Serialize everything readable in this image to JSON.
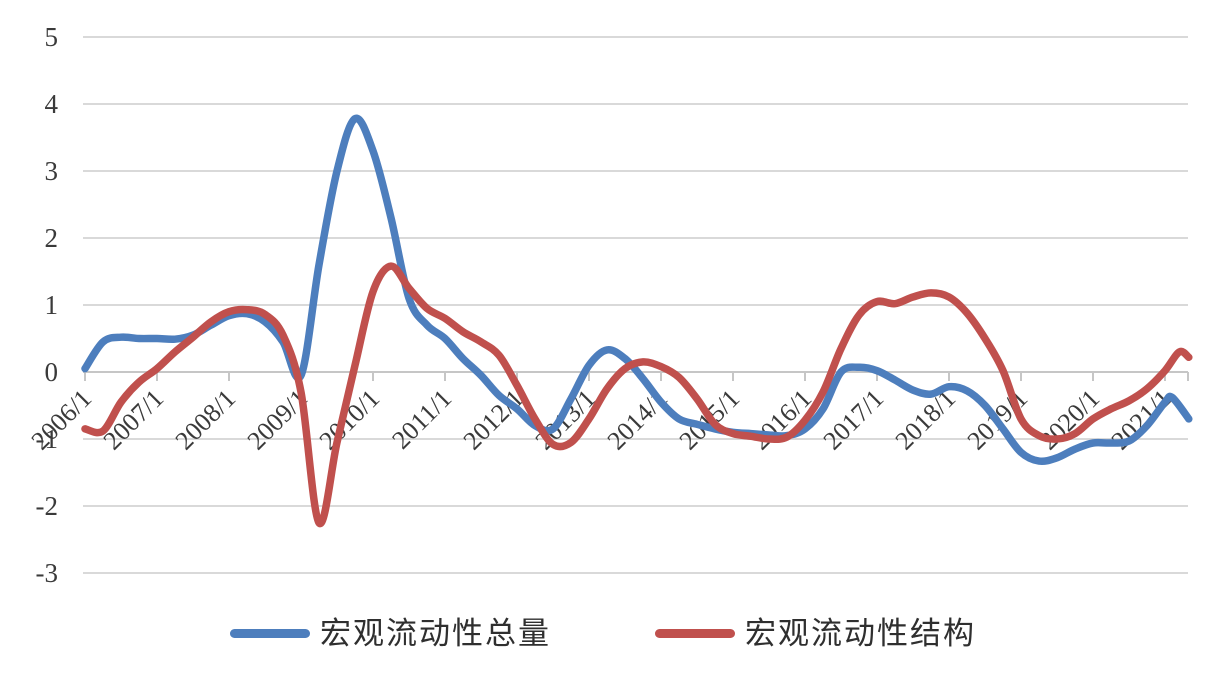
{
  "chart_data": {
    "type": "line",
    "title": "",
    "xlabel": "",
    "ylabel": "",
    "ylim": [
      -3,
      5
    ],
    "xlim_years": [
      2006.0,
      2021.4
    ],
    "grid": "horizontal",
    "legend_position": "bottom",
    "y_ticks": [
      5,
      4,
      3,
      2,
      1,
      0,
      -1,
      -2,
      -3
    ],
    "x_tick_years": [
      2006,
      2007,
      2008,
      2009,
      2010,
      2011,
      2012,
      2013,
      2014,
      2015,
      2016,
      2017,
      2018,
      2019,
      2020,
      2021
    ],
    "x_tick_labels": [
      "2006/1",
      "2007/1",
      "2008/1",
      "2009/1",
      "2010/1",
      "2011/1",
      "2012/1",
      "2013/1",
      "2014/1",
      "2015/1",
      "2016/1",
      "2017/1",
      "2018/1",
      "2019/1",
      "2020/1",
      "2021/1"
    ],
    "series": [
      {
        "name": "宏观流动性总量",
        "color": "#4d7ebd",
        "points": [
          [
            2006.0,
            0.05
          ],
          [
            2006.25,
            0.45
          ],
          [
            2006.5,
            0.52
          ],
          [
            2006.75,
            0.5
          ],
          [
            2007.0,
            0.5
          ],
          [
            2007.25,
            0.49
          ],
          [
            2007.5,
            0.55
          ],
          [
            2007.75,
            0.7
          ],
          [
            2008.0,
            0.84
          ],
          [
            2008.25,
            0.87
          ],
          [
            2008.5,
            0.75
          ],
          [
            2008.75,
            0.45
          ],
          [
            2009.0,
            -0.05
          ],
          [
            2009.25,
            1.6
          ],
          [
            2009.5,
            3.0
          ],
          [
            2009.75,
            3.78
          ],
          [
            2010.0,
            3.3
          ],
          [
            2010.25,
            2.3
          ],
          [
            2010.5,
            1.1
          ],
          [
            2010.75,
            0.7
          ],
          [
            2011.0,
            0.5
          ],
          [
            2011.25,
            0.2
          ],
          [
            2011.5,
            -0.05
          ],
          [
            2011.75,
            -0.35
          ],
          [
            2012.0,
            -0.55
          ],
          [
            2012.25,
            -0.8
          ],
          [
            2012.5,
            -0.85
          ],
          [
            2012.75,
            -0.4
          ],
          [
            2013.0,
            0.1
          ],
          [
            2013.25,
            0.33
          ],
          [
            2013.5,
            0.2
          ],
          [
            2013.75,
            -0.1
          ],
          [
            2014.0,
            -0.45
          ],
          [
            2014.25,
            -0.7
          ],
          [
            2014.5,
            -0.78
          ],
          [
            2014.75,
            -0.85
          ],
          [
            2015.0,
            -0.9
          ],
          [
            2015.25,
            -0.92
          ],
          [
            2015.5,
            -0.94
          ],
          [
            2015.75,
            -0.95
          ],
          [
            2016.0,
            -0.85
          ],
          [
            2016.25,
            -0.55
          ],
          [
            2016.5,
            0.0
          ],
          [
            2016.75,
            0.07
          ],
          [
            2017.0,
            0.02
          ],
          [
            2017.25,
            -0.12
          ],
          [
            2017.5,
            -0.27
          ],
          [
            2017.75,
            -0.33
          ],
          [
            2018.0,
            -0.22
          ],
          [
            2018.25,
            -0.28
          ],
          [
            2018.5,
            -0.5
          ],
          [
            2018.75,
            -0.85
          ],
          [
            2019.0,
            -1.2
          ],
          [
            2019.25,
            -1.33
          ],
          [
            2019.5,
            -1.28
          ],
          [
            2019.75,
            -1.15
          ],
          [
            2020.0,
            -1.06
          ],
          [
            2020.25,
            -1.06
          ],
          [
            2020.5,
            -1.03
          ],
          [
            2020.75,
            -0.8
          ],
          [
            2021.0,
            -0.45
          ],
          [
            2021.1,
            -0.38
          ],
          [
            2021.33,
            -0.7
          ]
        ]
      },
      {
        "name": "宏观流动性结构",
        "color": "#c0504d",
        "points": [
          [
            2006.0,
            -0.85
          ],
          [
            2006.25,
            -0.88
          ],
          [
            2006.5,
            -0.45
          ],
          [
            2006.75,
            -0.15
          ],
          [
            2007.0,
            0.05
          ],
          [
            2007.25,
            0.3
          ],
          [
            2007.5,
            0.52
          ],
          [
            2007.75,
            0.75
          ],
          [
            2008.0,
            0.9
          ],
          [
            2008.25,
            0.93
          ],
          [
            2008.5,
            0.86
          ],
          [
            2008.75,
            0.55
          ],
          [
            2009.0,
            -0.3
          ],
          [
            2009.25,
            -2.25
          ],
          [
            2009.5,
            -1.05
          ],
          [
            2009.75,
            0.1
          ],
          [
            2010.0,
            1.2
          ],
          [
            2010.25,
            1.58
          ],
          [
            2010.5,
            1.25
          ],
          [
            2010.75,
            0.95
          ],
          [
            2011.0,
            0.8
          ],
          [
            2011.25,
            0.6
          ],
          [
            2011.5,
            0.45
          ],
          [
            2011.75,
            0.25
          ],
          [
            2012.0,
            -0.2
          ],
          [
            2012.25,
            -0.7
          ],
          [
            2012.5,
            -1.08
          ],
          [
            2012.75,
            -1.05
          ],
          [
            2013.0,
            -0.7
          ],
          [
            2013.25,
            -0.25
          ],
          [
            2013.5,
            0.05
          ],
          [
            2013.75,
            0.15
          ],
          [
            2014.0,
            0.08
          ],
          [
            2014.25,
            -0.08
          ],
          [
            2014.5,
            -0.4
          ],
          [
            2014.75,
            -0.78
          ],
          [
            2015.0,
            -0.92
          ],
          [
            2015.25,
            -0.96
          ],
          [
            2015.5,
            -1.0
          ],
          [
            2015.75,
            -0.97
          ],
          [
            2016.0,
            -0.72
          ],
          [
            2016.25,
            -0.3
          ],
          [
            2016.5,
            0.35
          ],
          [
            2016.75,
            0.85
          ],
          [
            2017.0,
            1.05
          ],
          [
            2017.25,
            1.02
          ],
          [
            2017.5,
            1.12
          ],
          [
            2017.75,
            1.18
          ],
          [
            2018.0,
            1.12
          ],
          [
            2018.25,
            0.88
          ],
          [
            2018.5,
            0.5
          ],
          [
            2018.75,
            0.02
          ],
          [
            2019.0,
            -0.7
          ],
          [
            2019.25,
            -0.95
          ],
          [
            2019.5,
            -1.0
          ],
          [
            2019.75,
            -0.92
          ],
          [
            2020.0,
            -0.7
          ],
          [
            2020.25,
            -0.55
          ],
          [
            2020.5,
            -0.43
          ],
          [
            2020.75,
            -0.25
          ],
          [
            2021.0,
            0.02
          ],
          [
            2021.2,
            0.3
          ],
          [
            2021.33,
            0.22
          ]
        ]
      }
    ]
  },
  "colors": {
    "gridline": "#d9d9d9",
    "axis_line": "#c6c6c6",
    "tick": "#c6c6c6",
    "axis_text": "#3a3a3a",
    "background": "#ffffff"
  }
}
